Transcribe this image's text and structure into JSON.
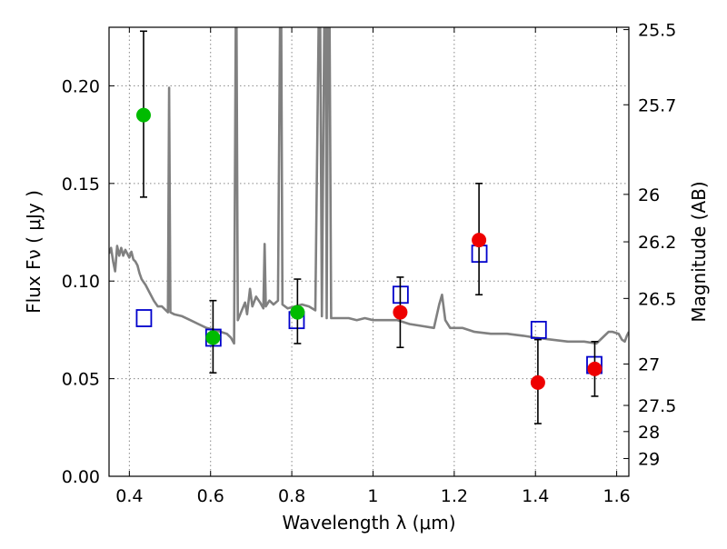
{
  "chart_data": {
    "type": "scatter",
    "xlabel": "Wavelength  λ (μm)",
    "ylabel": "Flux  Fν  ( μJy )",
    "y2label": "Magnitude (AB)",
    "xlim": [
      0.35,
      1.63
    ],
    "ylim": [
      0.0,
      0.23
    ],
    "grid": true,
    "xticks": [
      0.4,
      0.6,
      0.8,
      1.0,
      1.2,
      1.4,
      1.6
    ],
    "xtick_labels": [
      "0.4",
      "0.6",
      "0.8",
      "1",
      "1.2",
      "1.4",
      "1.6"
    ],
    "yticks": [
      0.0,
      0.05,
      0.1,
      0.15,
      0.2
    ],
    "ytick_labels": [
      "0.00",
      "0.05",
      "0.10",
      "0.15",
      "0.20"
    ],
    "y2ticks": [
      {
        "label": "25.5",
        "flux": 0.2288
      },
      {
        "label": "25.7",
        "flux": 0.1903
      },
      {
        "label": "26",
        "flux": 0.1444
      },
      {
        "label": "26.2",
        "flux": 0.1201
      },
      {
        "label": "26.5",
        "flux": 0.0911
      },
      {
        "label": "27",
        "flux": 0.0575
      },
      {
        "label": "27.5",
        "flux": 0.0363
      },
      {
        "label": "28",
        "flux": 0.0229
      },
      {
        "label": "29",
        "flux": 0.0091
      }
    ],
    "colors": {
      "sed": "#808080",
      "model": "#0000cc",
      "green": "#00bb00",
      "red": "#ee0000",
      "errorbar": "#000000",
      "grid": "#888888"
    },
    "series": [
      {
        "marker": "line",
        "color": "#808080",
        "points": [
          [
            0.35,
            0.114
          ],
          [
            0.355,
            0.117
          ],
          [
            0.36,
            0.11
          ],
          [
            0.365,
            0.105
          ],
          [
            0.37,
            0.118
          ],
          [
            0.375,
            0.113
          ],
          [
            0.38,
            0.117
          ],
          [
            0.385,
            0.113
          ],
          [
            0.39,
            0.116
          ],
          [
            0.395,
            0.114
          ],
          [
            0.4,
            0.112
          ],
          [
            0.405,
            0.115
          ],
          [
            0.41,
            0.111
          ],
          [
            0.415,
            0.11
          ],
          [
            0.42,
            0.108
          ],
          [
            0.425,
            0.104
          ],
          [
            0.43,
            0.101
          ],
          [
            0.44,
            0.098
          ],
          [
            0.45,
            0.094
          ],
          [
            0.46,
            0.09
          ],
          [
            0.47,
            0.087
          ],
          [
            0.48,
            0.087
          ],
          [
            0.49,
            0.085
          ],
          [
            0.495,
            0.084
          ],
          [
            0.498,
            0.199
          ],
          [
            0.501,
            0.084
          ],
          [
            0.51,
            0.083
          ],
          [
            0.53,
            0.082
          ],
          [
            0.55,
            0.08
          ],
          [
            0.57,
            0.078
          ],
          [
            0.59,
            0.076
          ],
          [
            0.61,
            0.075
          ],
          [
            0.625,
            0.074
          ],
          [
            0.64,
            0.073
          ],
          [
            0.65,
            0.071
          ],
          [
            0.658,
            0.068
          ],
          [
            0.662,
            0.23
          ],
          [
            0.664,
            0.23
          ],
          [
            0.667,
            0.08
          ],
          [
            0.675,
            0.084
          ],
          [
            0.685,
            0.089
          ],
          [
            0.69,
            0.083
          ],
          [
            0.697,
            0.096
          ],
          [
            0.703,
            0.087
          ],
          [
            0.712,
            0.092
          ],
          [
            0.722,
            0.089
          ],
          [
            0.73,
            0.086
          ],
          [
            0.733,
            0.119
          ],
          [
            0.736,
            0.087
          ],
          [
            0.745,
            0.09
          ],
          [
            0.755,
            0.088
          ],
          [
            0.766,
            0.09
          ],
          [
            0.771,
            0.23
          ],
          [
            0.774,
            0.23
          ],
          [
            0.777,
            0.088
          ],
          [
            0.79,
            0.086
          ],
          [
            0.808,
            0.087
          ],
          [
            0.825,
            0.088
          ],
          [
            0.842,
            0.087
          ],
          [
            0.858,
            0.085
          ],
          [
            0.866,
            0.23
          ],
          [
            0.87,
            0.23
          ],
          [
            0.874,
            0.082
          ],
          [
            0.88,
            0.23
          ],
          [
            0.884,
            0.23
          ],
          [
            0.886,
            0.081
          ],
          [
            0.889,
            0.23
          ],
          [
            0.893,
            0.23
          ],
          [
            0.897,
            0.081
          ],
          [
            0.92,
            0.081
          ],
          [
            0.94,
            0.081
          ],
          [
            0.96,
            0.08
          ],
          [
            0.98,
            0.081
          ],
          [
            1.0,
            0.08
          ],
          [
            1.03,
            0.08
          ],
          [
            1.06,
            0.08
          ],
          [
            1.09,
            0.078
          ],
          [
            1.12,
            0.077
          ],
          [
            1.15,
            0.076
          ],
          [
            1.163,
            0.088
          ],
          [
            1.17,
            0.093
          ],
          [
            1.178,
            0.08
          ],
          [
            1.19,
            0.076
          ],
          [
            1.22,
            0.076
          ],
          [
            1.25,
            0.074
          ],
          [
            1.29,
            0.073
          ],
          [
            1.33,
            0.073
          ],
          [
            1.37,
            0.072
          ],
          [
            1.4,
            0.071
          ],
          [
            1.44,
            0.07
          ],
          [
            1.48,
            0.069
          ],
          [
            1.52,
            0.069
          ],
          [
            1.55,
            0.068
          ],
          [
            1.565,
            0.071
          ],
          [
            1.58,
            0.074
          ],
          [
            1.59,
            0.074
          ],
          [
            1.605,
            0.073
          ],
          [
            1.613,
            0.07
          ],
          [
            1.62,
            0.069
          ],
          [
            1.625,
            0.072
          ],
          [
            1.63,
            0.074
          ]
        ]
      },
      {
        "marker": "open-square",
        "color": "#0000cc",
        "points": [
          {
            "x": 0.436,
            "y": 0.081
          },
          {
            "x": 0.607,
            "y": 0.071
          },
          {
            "x": 0.812,
            "y": 0.08
          },
          {
            "x": 1.068,
            "y": 0.093
          },
          {
            "x": 1.262,
            "y": 0.114
          },
          {
            "x": 1.408,
            "y": 0.075
          },
          {
            "x": 1.545,
            "y": 0.057
          }
        ]
      },
      {
        "marker": "filled-circle",
        "color": "#00bb00",
        "points": [
          {
            "x": 0.435,
            "y": 0.185,
            "ylo": 0.143,
            "yhi": 0.228
          },
          {
            "x": 0.606,
            "y": 0.071,
            "ylo": 0.053,
            "yhi": 0.09
          },
          {
            "x": 0.814,
            "y": 0.084,
            "ylo": 0.068,
            "yhi": 0.101
          }
        ]
      },
      {
        "marker": "filled-circle",
        "color": "#ee0000",
        "points": [
          {
            "x": 1.067,
            "y": 0.084,
            "ylo": 0.066,
            "yhi": 0.102
          },
          {
            "x": 1.261,
            "y": 0.121,
            "ylo": 0.093,
            "yhi": 0.15
          },
          {
            "x": 1.406,
            "y": 0.048,
            "ylo": 0.027,
            "yhi": 0.07
          },
          {
            "x": 1.546,
            "y": 0.055,
            "ylo": 0.041,
            "yhi": 0.069
          }
        ]
      }
    ]
  }
}
